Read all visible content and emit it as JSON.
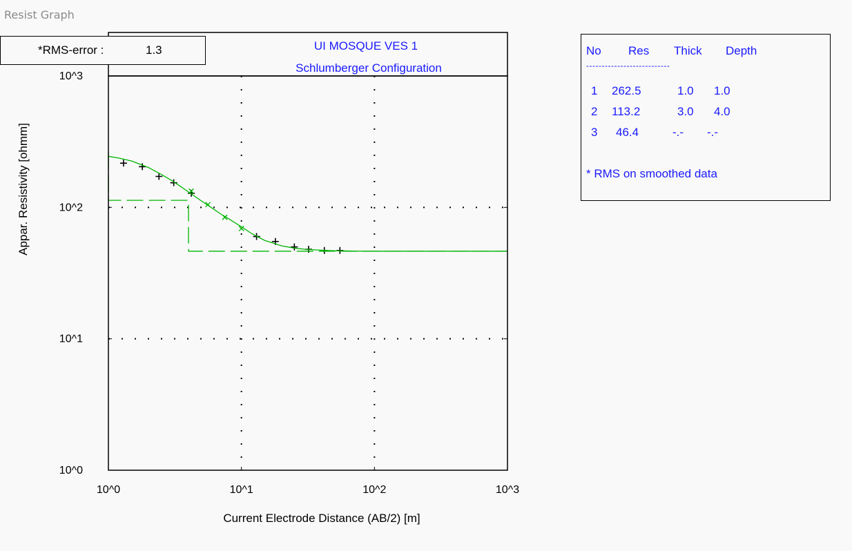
{
  "window": {
    "title": "Resist Graph"
  },
  "rms_box": {
    "label": "*RMS-error :",
    "value": "1.3"
  },
  "layer_table": {
    "headers": [
      "No",
      "Res",
      "Thick",
      "Depth"
    ],
    "separator": "---------------------------",
    "rows": [
      [
        "1",
        "262.5",
        "1.0",
        "1.0"
      ],
      [
        "2",
        "113.2",
        "3.0",
        "4.0"
      ],
      [
        "3",
        "46.4",
        "-.-",
        "-.-"
      ]
    ],
    "note": "* RMS on smoothed data"
  },
  "colors": {
    "fit_curve": "#00b400",
    "model": "#00b400",
    "observed": "#000000",
    "title_text": "#1a1aff"
  },
  "chart_data": {
    "type": "line",
    "title": "UI MOSQUE VES 1",
    "subtitle": "Schlumberger Configuration",
    "xlabel": "Current Electrode Distance (AB/2) [m]",
    "ylabel": "Appar. Resistivity [ohmm]",
    "xscale": "log",
    "yscale": "log",
    "xlim": [
      1,
      1000
    ],
    "ylim": [
      1,
      1000
    ],
    "xticks": [
      1,
      10,
      100,
      1000
    ],
    "yticks": [
      1,
      10,
      100,
      1000
    ],
    "xtick_labels": [
      "10^0",
      "10^1",
      "10^2",
      "10^3"
    ],
    "ytick_labels": [
      "10^0",
      "10^1",
      "10^2",
      "10^3"
    ],
    "grid": "dotted",
    "series": [
      {
        "type": "scatter_plus",
        "x": [
          1.3,
          1.8,
          2.4,
          3.1,
          4.2,
          13,
          18,
          25,
          32,
          42,
          55
        ],
        "y": [
          217,
          204,
          172,
          154,
          128,
          60,
          55,
          50,
          48,
          47,
          47
        ]
      },
      {
        "type": "scatter_x",
        "x": [
          4.2,
          5.6,
          7.5,
          10
        ],
        "y": [
          133,
          105,
          84,
          69
        ]
      },
      {
        "type": "line",
        "x": [
          1,
          1.2,
          1.5,
          2,
          2.5,
          3,
          3.5,
          4,
          5,
          6,
          7,
          8,
          10,
          12,
          15,
          20,
          25,
          30,
          40,
          50,
          70,
          100,
          1000
        ],
        "y": [
          245,
          237,
          225,
          201,
          178,
          160,
          144,
          131,
          112,
          99,
          89,
          82,
          71,
          63,
          56,
          51,
          49,
          48,
          47.2,
          46.8,
          46.5,
          46.4,
          46.4
        ]
      },
      {
        "type": "model_steps",
        "x": [
          1,
          1.0,
          4.0,
          4.0,
          1000
        ],
        "y": [
          262.5,
          113.2,
          113.2,
          46.4,
          46.4
        ]
      }
    ]
  }
}
